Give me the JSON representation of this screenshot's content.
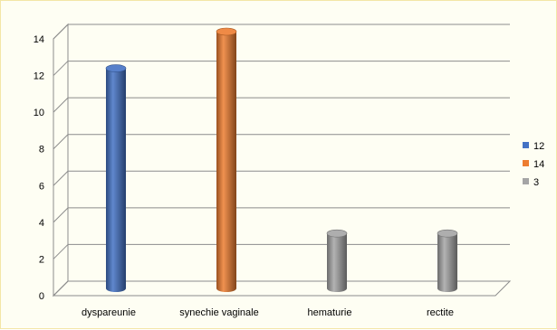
{
  "chart_data": {
    "type": "bar",
    "categories": [
      "dyspareunie",
      "synechie vaginale",
      "hematurie",
      "rectite"
    ],
    "values": [
      12,
      14,
      3,
      3
    ],
    "colors": [
      "#4472c4",
      "#ed7d31",
      "#a5a5a5",
      "#a5a5a5"
    ],
    "ylim": [
      0,
      14
    ],
    "yticks": [
      "0",
      "2",
      "4",
      "6",
      "8",
      "10",
      "12",
      "14"
    ],
    "grid": true,
    "legend_position": "right",
    "legend": [
      {
        "label": "12",
        "color": "#4472c4"
      },
      {
        "label": "14",
        "color": "#ed7d31"
      },
      {
        "label": "3",
        "color": "#a5a5a5"
      }
    ],
    "style": "3d-cylinder"
  }
}
